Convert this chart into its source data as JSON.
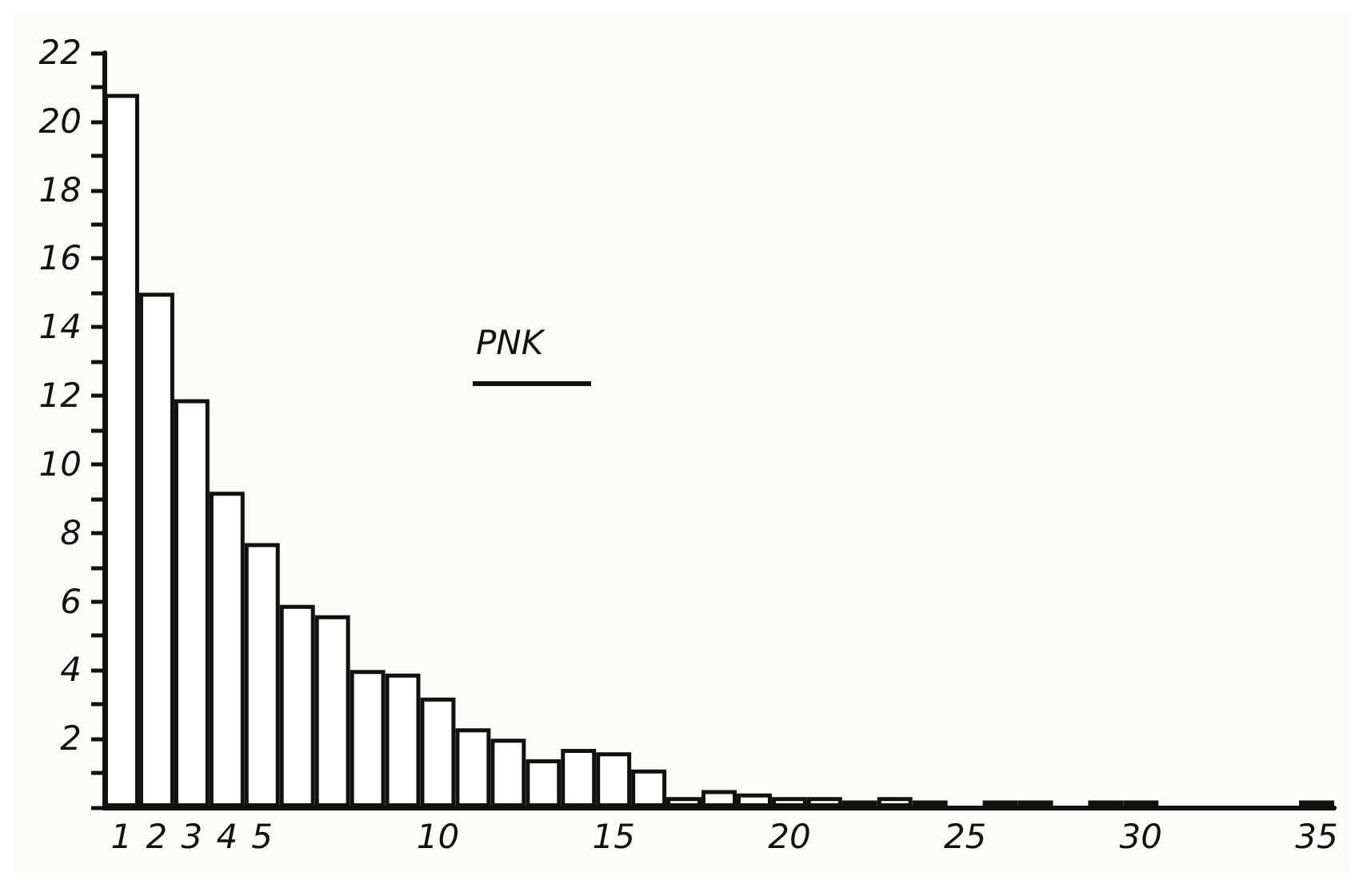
{
  "chart_data": {
    "type": "bar",
    "categories": [
      "1",
      "2",
      "3",
      "4",
      "5",
      null,
      null,
      null,
      null,
      "10",
      null,
      null,
      null,
      null,
      "15",
      null,
      null,
      null,
      null,
      "20",
      null,
      null,
      null,
      null,
      "25",
      null,
      null,
      null,
      null,
      "30",
      null,
      null,
      null,
      null,
      "35"
    ],
    "values": [
      20.8,
      15.0,
      11.9,
      9.2,
      7.7,
      5.9,
      5.6,
      4.0,
      3.9,
      3.2,
      2.3,
      2.0,
      1.4,
      1.7,
      1.6,
      1.1,
      0.3,
      0.5,
      0.4,
      0.3,
      0.3,
      0.2,
      0.3,
      0.2,
      0,
      0.2,
      0.2,
      0,
      0.2,
      0.2,
      0,
      0,
      0,
      0,
      0.2
    ],
    "color": "#ffffff",
    "ylim": [
      0,
      22
    ],
    "yticks": [
      {
        "value": 0,
        "label": null
      },
      {
        "value": 1,
        "label": null
      },
      2,
      {
        "value": 3,
        "label": null
      },
      4,
      {
        "value": 5,
        "label": null
      },
      6,
      {
        "value": 7,
        "label": null
      },
      8,
      {
        "value": 9,
        "label": null
      },
      10,
      {
        "value": 11,
        "label": null
      },
      12,
      {
        "value": 13,
        "label": null
      },
      14,
      {
        "value": 15,
        "label": null
      },
      16,
      {
        "value": 17,
        "label": null
      },
      18,
      {
        "value": 19,
        "label": null
      },
      20,
      {
        "value": 21,
        "label": null
      },
      22
    ],
    "annotations": [
      "PNK"
    ],
    "grid": false
  }
}
